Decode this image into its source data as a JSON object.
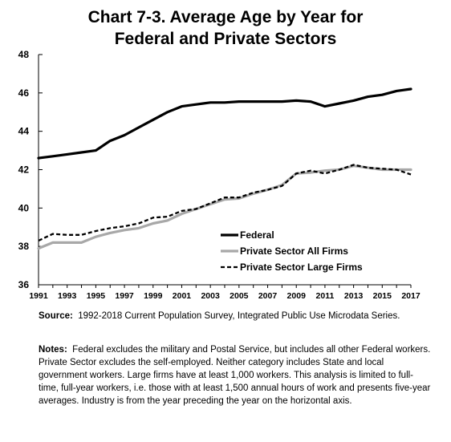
{
  "title_line1": "Chart 7-3.  Average Age by Year for",
  "title_line2": "Federal and Private Sectors",
  "source_label": "Source:",
  "source_text": "1992-2018 Current Population Survey, Integrated Public Use Microdata Series.",
  "notes_label": "Notes:",
  "notes_text": "Federal excludes the military and Postal Service, but includes all other Federal workers.  Private Sector excludes the self-employed.  Neither category includes State and local government workers. Large firms have at least 1,000 workers. This analysis is limited to full-time, full-year workers, i.e. those with at least 1,500 annual hours of work and presents five-year  averages.  Industry is from the year preceding the year on the horizontal axis.",
  "chart_data": {
    "type": "line",
    "title": "Chart 7-3.  Average Age by Year for Federal and Private Sectors",
    "xlabel": "",
    "ylabel": "",
    "xlim": [
      1991,
      2017
    ],
    "ylim": [
      36,
      48
    ],
    "x_ticks": [
      "1991",
      "1993",
      "1995",
      "1997",
      "1999",
      "2001",
      "2003",
      "2005",
      "2007",
      "2009",
      "2011",
      "2013",
      "2015",
      "2017"
    ],
    "y_ticks": [
      "36",
      "38",
      "40",
      "42",
      "44",
      "46",
      "48"
    ],
    "grid": false,
    "legend_position": "lower-right",
    "x": [
      1991,
      1992,
      1993,
      1994,
      1995,
      1996,
      1997,
      1998,
      1999,
      2000,
      2001,
      2002,
      2003,
      2004,
      2005,
      2006,
      2007,
      2008,
      2009,
      2010,
      2011,
      2012,
      2013,
      2014,
      2015,
      2016,
      2017
    ],
    "series": [
      {
        "name": "Federal",
        "style": "solid",
        "color": "#000000",
        "values": [
          42.6,
          42.7,
          42.8,
          42.9,
          43.0,
          43.5,
          43.8,
          44.2,
          44.6,
          45.0,
          45.3,
          45.4,
          45.5,
          45.5,
          45.55,
          45.55,
          45.55,
          45.55,
          45.6,
          45.55,
          45.3,
          45.45,
          45.6,
          45.8,
          45.9,
          46.1,
          46.2
        ]
      },
      {
        "name": "Private Sector All Firms",
        "style": "solid",
        "color": "#a8a8a8",
        "values": [
          37.9,
          38.2,
          38.2,
          38.2,
          38.5,
          38.7,
          38.85,
          38.95,
          39.2,
          39.35,
          39.7,
          39.95,
          40.2,
          40.45,
          40.5,
          40.75,
          40.95,
          41.2,
          41.8,
          41.85,
          41.95,
          42.0,
          42.2,
          42.1,
          42.0,
          42.0,
          42.0
        ]
      },
      {
        "name": "Private Sector Large Firms",
        "style": "dashed",
        "color": "#000000",
        "values": [
          38.3,
          38.65,
          38.6,
          38.6,
          38.8,
          38.95,
          39.05,
          39.2,
          39.5,
          39.55,
          39.85,
          39.95,
          40.25,
          40.55,
          40.55,
          40.8,
          40.95,
          41.15,
          41.8,
          41.95,
          41.8,
          42.0,
          42.25,
          42.1,
          42.05,
          42.0,
          41.75
        ]
      }
    ]
  }
}
